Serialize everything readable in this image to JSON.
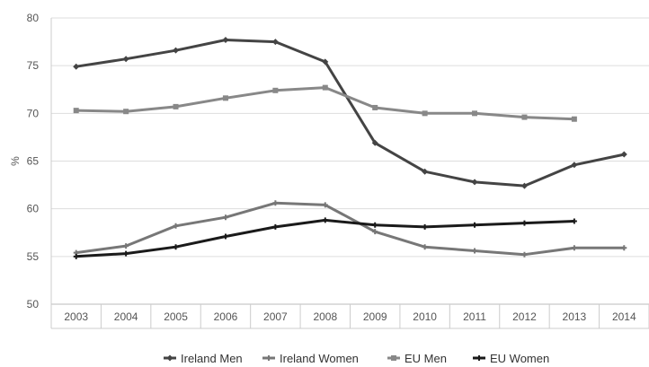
{
  "chart_data": {
    "type": "line",
    "title": "",
    "xlabel": "",
    "ylabel": "%",
    "ylim": [
      50,
      80
    ],
    "yticks": [
      50,
      55,
      60,
      65,
      70,
      75,
      80
    ],
    "categories": [
      "2003",
      "2004",
      "2005",
      "2006",
      "2007",
      "2008",
      "2009",
      "2010",
      "2011",
      "2012",
      "2013",
      "2014"
    ],
    "grid": "horizontal",
    "legend_position": "bottom",
    "series": [
      {
        "name": "Ireland Men",
        "color": "#444444",
        "marker": "diamond",
        "values": [
          74.9,
          75.7,
          76.6,
          77.7,
          77.5,
          75.4,
          66.9,
          63.9,
          62.8,
          62.4,
          64.6,
          65.7
        ]
      },
      {
        "name": "Ireland Women",
        "color": "#777777",
        "marker": "cross",
        "values": [
          55.4,
          56.1,
          58.2,
          59.1,
          60.6,
          60.4,
          57.6,
          56.0,
          55.6,
          55.2,
          55.9,
          55.9
        ]
      },
      {
        "name": "EU Men",
        "color": "#888888",
        "marker": "square",
        "values": [
          70.3,
          70.2,
          70.7,
          71.6,
          72.4,
          72.7,
          70.6,
          70.0,
          70.0,
          69.6,
          69.4,
          null
        ]
      },
      {
        "name": "EU Women",
        "color": "#1a1a1a",
        "marker": "cross",
        "values": [
          55.0,
          55.3,
          56.0,
          57.1,
          58.1,
          58.8,
          58.3,
          58.1,
          58.3,
          58.5,
          58.7,
          null
        ]
      }
    ]
  }
}
